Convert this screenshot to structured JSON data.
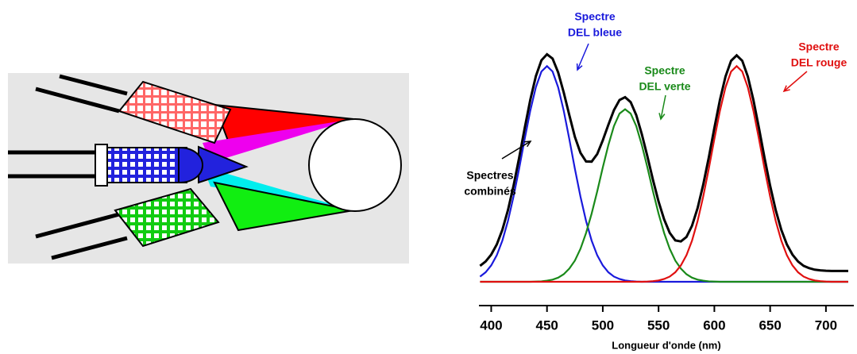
{
  "chart_data": {
    "type": "line",
    "xlabel": "Longueur d'onde (nm)",
    "x": [
      390,
      395,
      400,
      405,
      410,
      415,
      420,
      425,
      430,
      435,
      440,
      445,
      450,
      455,
      460,
      465,
      470,
      475,
      480,
      485,
      490,
      495,
      500,
      505,
      510,
      515,
      520,
      525,
      530,
      535,
      540,
      545,
      550,
      555,
      560,
      565,
      570,
      575,
      580,
      585,
      590,
      595,
      600,
      605,
      610,
      615,
      620,
      625,
      630,
      635,
      640,
      645,
      650,
      655,
      660,
      665,
      670,
      675,
      680,
      685,
      690,
      695,
      700,
      705,
      710,
      715,
      720
    ],
    "series": [
      {
        "name": [
          "Spectres",
          "combinés"
        ],
        "color": "#000000",
        "values": [
          0.074,
          0.094,
          0.126,
          0.173,
          0.241,
          0.332,
          0.445,
          0.574,
          0.712,
          0.843,
          0.953,
          1.027,
          1.055,
          1.035,
          0.971,
          0.878,
          0.773,
          0.672,
          0.598,
          0.558,
          0.557,
          0.592,
          0.656,
          0.728,
          0.796,
          0.843,
          0.856,
          0.833,
          0.773,
          0.684,
          0.581,
          0.472,
          0.372,
          0.289,
          0.227,
          0.192,
          0.187,
          0.208,
          0.26,
          0.342,
          0.45,
          0.576,
          0.713,
          0.843,
          0.952,
          1.025,
          1.05,
          1.025,
          0.952,
          0.843,
          0.712,
          0.574,
          0.445,
          0.332,
          0.241,
          0.173,
          0.126,
          0.094,
          0.074,
          0.063,
          0.056,
          0.053,
          0.051,
          0.05,
          0.05,
          0.05,
          0.05
        ]
      },
      {
        "name": [
          "Spectre",
          "DEL bleue"
        ],
        "color": "#1a1adc",
        "values": [
          0.024,
          0.044,
          0.076,
          0.123,
          0.191,
          0.282,
          0.395,
          0.524,
          0.662,
          0.793,
          0.902,
          0.975,
          1,
          0.975,
          0.902,
          0.793,
          0.662,
          0.524,
          0.395,
          0.282,
          0.191,
          0.123,
          0.076,
          0.044,
          0.024,
          0.013,
          0.006,
          0.003,
          0.001,
          0,
          0,
          0,
          0,
          0,
          0,
          0,
          0,
          0,
          0,
          0,
          0,
          0,
          0,
          0,
          0,
          0,
          0,
          0,
          0,
          0,
          0,
          0,
          0,
          0,
          0,
          0,
          0,
          0,
          0,
          0,
          0,
          0,
          0,
          0,
          0,
          0,
          0
        ]
      },
      {
        "name": [
          "Spectre",
          "DEL verte"
        ],
        "color": "#1a8a1a",
        "values": [
          0,
          0,
          0,
          0,
          0,
          0,
          0,
          0,
          0,
          0,
          0.001,
          0.002,
          0.005,
          0.01,
          0.019,
          0.035,
          0.061,
          0.098,
          0.153,
          0.226,
          0.316,
          0.419,
          0.53,
          0.634,
          0.722,
          0.78,
          0.8,
          0.78,
          0.722,
          0.634,
          0.53,
          0.419,
          0.316,
          0.226,
          0.153,
          0.098,
          0.061,
          0.035,
          0.019,
          0.01,
          0.005,
          0.002,
          0.001,
          0,
          0,
          0,
          0,
          0,
          0,
          0,
          0,
          0,
          0,
          0,
          0,
          0,
          0,
          0,
          0,
          0,
          0,
          0,
          0,
          0,
          0,
          0,
          0
        ]
      },
      {
        "name": [
          "Spectre",
          "DEL rouge"
        ],
        "color": "#e01010",
        "values": [
          0,
          0,
          0,
          0,
          0,
          0,
          0,
          0,
          0,
          0,
          0,
          0,
          0,
          0,
          0,
          0,
          0,
          0,
          0,
          0,
          0,
          0,
          0,
          0,
          0,
          0,
          0,
          0,
          0,
          0,
          0.001,
          0.003,
          0.006,
          0.013,
          0.024,
          0.044,
          0.076,
          0.123,
          0.191,
          0.282,
          0.395,
          0.524,
          0.662,
          0.793,
          0.902,
          0.975,
          1,
          0.975,
          0.902,
          0.793,
          0.662,
          0.524,
          0.395,
          0.282,
          0.191,
          0.123,
          0.076,
          0.044,
          0.024,
          0.013,
          0.006,
          0.003,
          0.001,
          0,
          0,
          0,
          0
        ]
      }
    ],
    "xlim": [
      389,
      725
    ],
    "xticks": [
      400,
      450,
      500,
      550,
      600,
      650,
      700
    ],
    "ylim": [
      0,
      1.2
    ]
  }
}
